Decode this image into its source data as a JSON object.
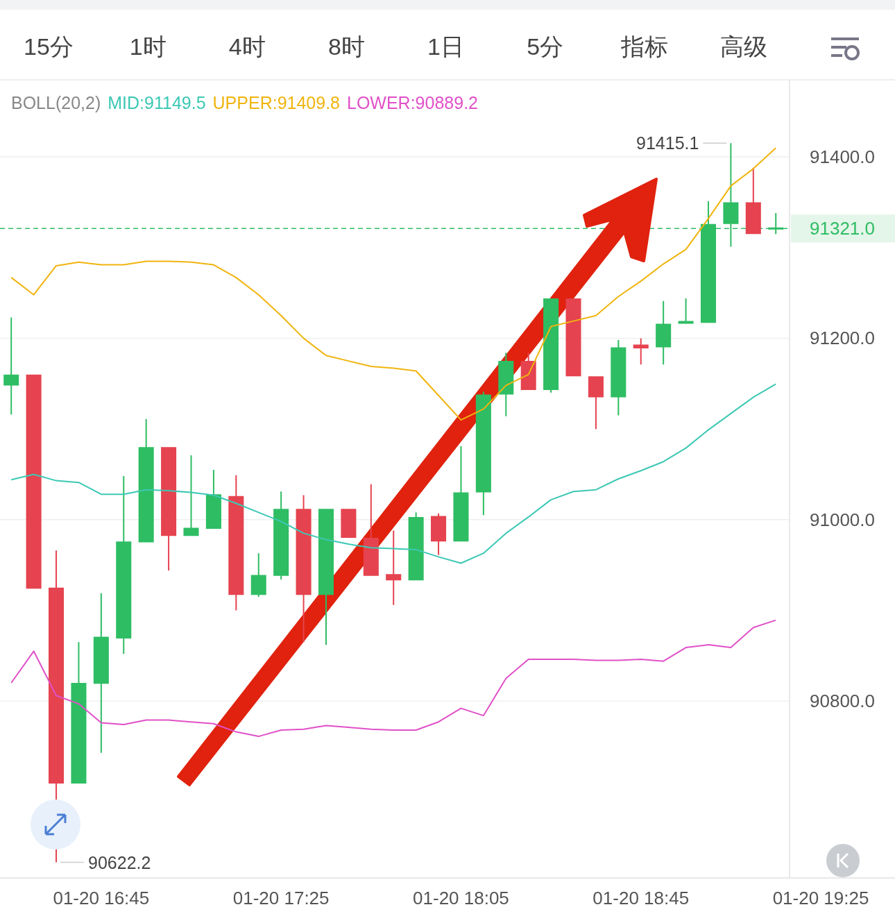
{
  "chart_data": {
    "type": "candlestick",
    "title": "BOLL(20,2)",
    "annotations": [
      "15分",
      "1时",
      "4时",
      "8时",
      "1日",
      "5分",
      "指标",
      "高级",
      "91415.1",
      "90622.2"
    ],
    "categories": [
      null,
      null,
      null,
      null,
      "01-20 16:45",
      null,
      null,
      null,
      null,
      null,
      null,
      null,
      "01-20 17:25",
      null,
      null,
      null,
      null,
      null,
      null,
      null,
      "01-20 18:05",
      null,
      null,
      null,
      null,
      null,
      null,
      null,
      "01-20 18:45",
      null,
      null,
      null,
      null,
      null,
      null,
      null,
      "01-20 19:25"
    ],
    "ohlc": [
      [
        91148,
        91223,
        91116,
        91160
      ],
      [
        91160,
        91160,
        90924,
        90924
      ],
      [
        90925,
        90966,
        90622.2,
        90709
      ],
      [
        90709,
        90865,
        90709,
        90820
      ],
      [
        90819,
        90919,
        90743,
        90871
      ],
      [
        90869,
        91048,
        90852,
        90976
      ],
      [
        90975,
        91111,
        90975,
        91080
      ],
      [
        91080,
        91080,
        90944,
        90982
      ],
      [
        90982,
        91071,
        90982,
        90991
      ],
      [
        90990,
        91055,
        90990,
        91028
      ],
      [
        91026,
        91049,
        90900,
        90917
      ],
      [
        90917,
        90963,
        90915,
        90939
      ],
      [
        90938,
        91031,
        90934,
        91012
      ],
      [
        91012,
        91027,
        90865,
        90917
      ],
      [
        90917,
        91012,
        90862,
        91012
      ],
      [
        91012,
        91012,
        90980,
        90980
      ],
      [
        90980,
        91039,
        90938,
        90938
      ],
      [
        90940,
        90988,
        90906,
        90933
      ],
      [
        90933,
        91008,
        90933,
        91003
      ],
      [
        91004,
        91007,
        90961,
        90976
      ],
      [
        90976,
        91081,
        90976,
        91030
      ],
      [
        91030,
        91141,
        91005,
        91138
      ],
      [
        91138,
        91184,
        91114,
        91175
      ],
      [
        91175,
        91184,
        91143,
        91143
      ],
      [
        91143,
        91244,
        91140,
        91244
      ],
      [
        91244,
        91244,
        91158,
        91158
      ],
      [
        91158,
        91158,
        91100,
        91135
      ],
      [
        91135,
        91198,
        91115,
        91190
      ],
      [
        91192,
        91200,
        91171,
        91190
      ],
      [
        91190,
        91241,
        91171,
        91216
      ],
      [
        91216,
        91244,
        91216,
        91219
      ],
      [
        91217,
        91351,
        91217,
        91326
      ],
      [
        91326,
        91415.1,
        91301,
        91350
      ],
      [
        91350,
        91388,
        91315,
        91315
      ],
      [
        91321,
        91338,
        91315,
        91321
      ],
      null,
      null
    ],
    "colors": [
      "#2ebd63",
      "#e5434f",
      "#e5434f",
      "#2ebd63",
      "#2ebd63",
      "#2ebd63",
      "#2ebd63",
      "#e5434f",
      "#2ebd63",
      "#2ebd63",
      "#e5434f",
      "#2ebd63",
      "#2ebd63",
      "#e5434f",
      "#2ebd63",
      "#e5434f",
      "#e5434f",
      "#e5434f",
      "#2ebd63",
      "#e5434f",
      "#2ebd63",
      "#2ebd63",
      "#2ebd63",
      "#e5434f",
      "#2ebd63",
      "#e5434f",
      "#e5434f",
      "#2ebd63",
      "#e5434f",
      "#2ebd63",
      "#2ebd63",
      "#2ebd63",
      "#2ebd63",
      "#e5434f",
      "#2ebd63",
      null,
      null
    ],
    "series": [
      {
        "type": "line",
        "name": "MID:91149.5",
        "color": "#3cc8b4",
        "values": [
          91044,
          91050,
          91043,
          91041,
          91028,
          91028,
          91033,
          91032,
          91030,
          91027,
          91018,
          91008,
          90998,
          90985,
          90978,
          90973,
          90969,
          90968,
          90967,
          90959,
          90952,
          90963,
          90985,
          91003,
          91022,
          91031,
          91033,
          91045,
          91054,
          91064,
          91079,
          91099,
          91117,
          91135,
          91149.5,
          null,
          null
        ]
      },
      {
        "type": "line",
        "name": "UPPER:91409.8",
        "color": "#f0b40f",
        "values": [
          91267,
          91248,
          91280,
          91284,
          91281,
          91281,
          91285,
          91285,
          91284,
          91281,
          91267,
          91248,
          91225,
          91200,
          91181,
          91175,
          91169,
          91167,
          91164,
          91137,
          91110,
          91122,
          91148,
          91160,
          91213,
          91219,
          91225,
          91246,
          91263,
          91282,
          91298,
          91332,
          91368,
          91387,
          91409.8,
          null,
          null
        ]
      },
      {
        "type": "line",
        "name": "LOWER:90889.2",
        "color": "#e050c8",
        "values": [
          90820,
          90855,
          90806,
          90797,
          90776,
          90774,
          90779,
          90779,
          90777,
          90775,
          90766,
          90761,
          90768,
          90769,
          90773,
          90771,
          90769,
          90768,
          90768,
          90777,
          90792,
          90784,
          90825,
          90846,
          90846,
          90846,
          90845,
          90845,
          90846,
          90844,
          90859,
          90862,
          90859,
          90881,
          90889.2,
          null,
          null
        ]
      }
    ],
    "ylim": [
      90605,
      91485
    ],
    "yticks": [
      {
        "value": 90800,
        "label": "90800.0"
      },
      {
        "value": 91000,
        "label": "91000.0"
      },
      {
        "value": 91200,
        "label": "91200.0"
      },
      {
        "value": 91400,
        "label": "91400.0"
      }
    ],
    "grid": "y",
    "legend": "top",
    "ref_lines": [
      {
        "axis": "y",
        "value": 91321.0,
        "label": "91321.0",
        "color": "#2ebd63",
        "line_style": "dashed"
      }
    ]
  }
}
